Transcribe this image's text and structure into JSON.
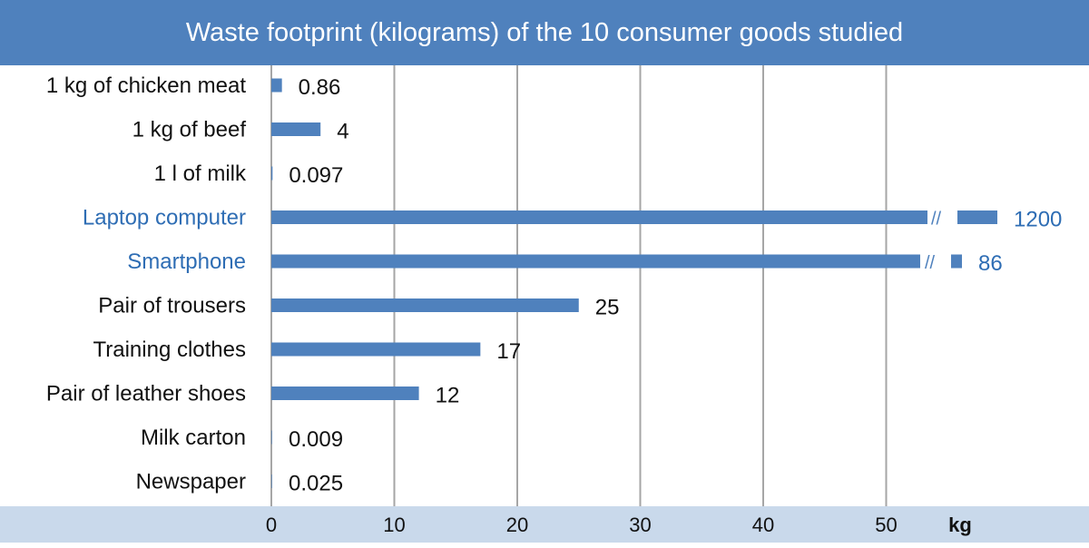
{
  "chart_data": {
    "type": "bar",
    "orientation": "horizontal",
    "title": "Waste footprint (kilograms) of the 10 consumer goods studied",
    "xlabel": "kg",
    "xlim": [
      0,
      59
    ],
    "xticks": [
      0,
      10,
      20,
      30,
      40,
      50
    ],
    "grid": true,
    "break_marker": "//",
    "categories": [
      "1 kg of chicken meat",
      "1 kg of beef",
      "1 l of milk",
      "Laptop computer",
      "Smartphone",
      "Pair of trousers",
      "Training clothes",
      "Pair of leather shoes",
      "Milk carton",
      "Newspaper"
    ],
    "values": [
      0.86,
      4,
      0.097,
      1200,
      86,
      25,
      17,
      12,
      0.009,
      0.025
    ],
    "value_labels": [
      "0.86",
      "4",
      "0.097",
      "1200",
      "86",
      "25",
      "17",
      "12",
      "0.009",
      "0.025"
    ],
    "broken_axis_bars": [
      "Laptop computer",
      "Smartphone"
    ],
    "highlighted_categories": [
      "Laptop computer",
      "Smartphone"
    ],
    "colors": {
      "bar": "#4f81bd",
      "highlight_text": "#2e6db4",
      "text": "#111111",
      "title_bg": "#4f81bd",
      "axis_bg": "#c9d9eb",
      "grid": "#a6a6a6"
    }
  }
}
